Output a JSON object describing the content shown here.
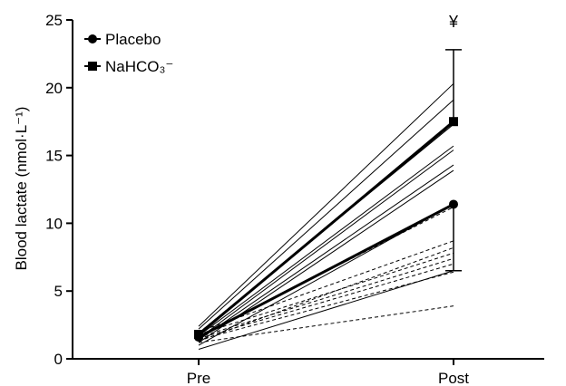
{
  "chart_data": {
    "type": "line",
    "title": "",
    "xlabel": "",
    "ylabel": "Blood lactate (nmol·L⁻¹)",
    "categories": [
      "Pre",
      "Post"
    ],
    "ylim": [
      0,
      25
    ],
    "yticks": [
      "0",
      "5",
      "10",
      "15",
      "20",
      "25"
    ],
    "grid": false,
    "legend_position": "top-left",
    "legend": [
      {
        "label": "Placebo",
        "marker": "circle"
      },
      {
        "label": "NaHCO₃⁻",
        "marker": "square"
      }
    ],
    "series": [
      {
        "name": "Placebo",
        "values": [
          1.6,
          11.4
        ],
        "error_low": [
          null,
          6.5
        ],
        "error_high": [
          null,
          null
        ]
      },
      {
        "name": "NaHCO₃⁻",
        "values": [
          1.8,
          17.5
        ],
        "error_low": [
          null,
          null
        ],
        "error_high": [
          null,
          22.8
        ]
      }
    ],
    "individual_lines": {
      "placebo_dashed": [
        [
          1.2,
          3.9
        ],
        [
          1.4,
          6.4
        ],
        [
          1.5,
          7.0
        ],
        [
          1.6,
          7.4
        ],
        [
          1.8,
          7.8
        ],
        [
          1.3,
          8.2
        ],
        [
          2.0,
          8.7
        ],
        [
          1.7,
          11.2
        ],
        [
          1.9,
          17.4
        ]
      ],
      "nahco3_solid": [
        [
          0.7,
          6.5
        ],
        [
          1.0,
          11.4
        ],
        [
          1.2,
          13.9
        ],
        [
          1.4,
          14.3
        ],
        [
          1.5,
          15.4
        ],
        [
          1.7,
          15.7
        ],
        [
          1.9,
          17.3
        ],
        [
          2.2,
          19.1
        ],
        [
          2.4,
          20.3
        ]
      ]
    },
    "annotations": [
      {
        "text": "¥",
        "category": "Post"
      }
    ]
  }
}
